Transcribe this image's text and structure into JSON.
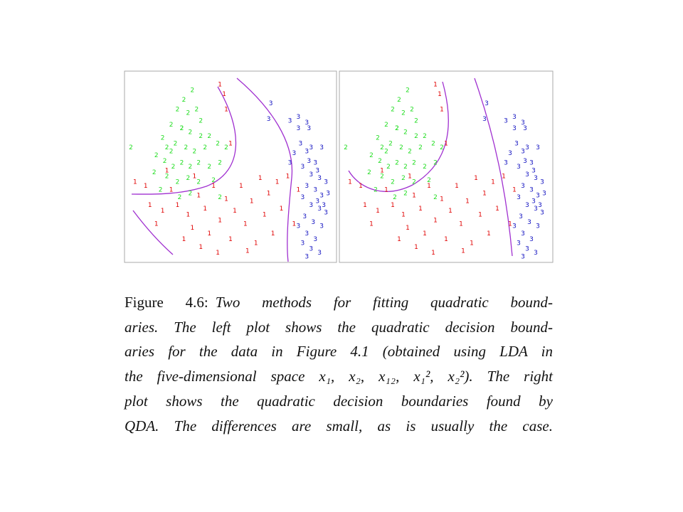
{
  "figure": {
    "classes": [
      {
        "label": "1",
        "color": "#e00000",
        "points": [
          [
            0.45,
            0.93
          ],
          [
            0.47,
            0.88
          ],
          [
            0.48,
            0.8
          ],
          [
            0.5,
            0.62
          ],
          [
            0.1,
            0.4
          ],
          [
            0.12,
            0.3
          ],
          [
            0.18,
            0.27
          ],
          [
            0.22,
            0.38
          ],
          [
            0.25,
            0.3
          ],
          [
            0.3,
            0.25
          ],
          [
            0.32,
            0.18
          ],
          [
            0.35,
            0.35
          ],
          [
            0.38,
            0.28
          ],
          [
            0.4,
            0.15
          ],
          [
            0.42,
            0.4
          ],
          [
            0.45,
            0.22
          ],
          [
            0.48,
            0.33
          ],
          [
            0.5,
            0.12
          ],
          [
            0.52,
            0.27
          ],
          [
            0.55,
            0.4
          ],
          [
            0.57,
            0.2
          ],
          [
            0.6,
            0.32
          ],
          [
            0.62,
            0.1
          ],
          [
            0.64,
            0.44
          ],
          [
            0.66,
            0.25
          ],
          [
            0.68,
            0.36
          ],
          [
            0.7,
            0.15
          ],
          [
            0.72,
            0.42
          ],
          [
            0.74,
            0.28
          ],
          [
            0.77,
            0.45
          ],
          [
            0.8,
            0.2
          ],
          [
            0.82,
            0.38
          ],
          [
            0.28,
            0.12
          ],
          [
            0.36,
            0.08
          ],
          [
            0.44,
            0.05
          ],
          [
            0.58,
            0.06
          ],
          [
            0.2,
            0.48
          ],
          [
            0.33,
            0.45
          ],
          [
            0.05,
            0.42
          ],
          [
            0.15,
            0.2
          ]
        ]
      },
      {
        "label": "2",
        "color": "#22dd22",
        "points": [
          [
            0.32,
            0.9
          ],
          [
            0.28,
            0.85
          ],
          [
            0.25,
            0.8
          ],
          [
            0.3,
            0.78
          ],
          [
            0.34,
            0.8
          ],
          [
            0.22,
            0.72
          ],
          [
            0.27,
            0.7
          ],
          [
            0.31,
            0.68
          ],
          [
            0.36,
            0.74
          ],
          [
            0.4,
            0.66
          ],
          [
            0.18,
            0.65
          ],
          [
            0.2,
            0.6
          ],
          [
            0.24,
            0.62
          ],
          [
            0.29,
            0.6
          ],
          [
            0.33,
            0.58
          ],
          [
            0.38,
            0.6
          ],
          [
            0.44,
            0.62
          ],
          [
            0.48,
            0.6
          ],
          [
            0.03,
            0.6
          ],
          [
            0.15,
            0.56
          ],
          [
            0.19,
            0.53
          ],
          [
            0.23,
            0.5
          ],
          [
            0.27,
            0.52
          ],
          [
            0.31,
            0.5
          ],
          [
            0.35,
            0.52
          ],
          [
            0.4,
            0.5
          ],
          [
            0.45,
            0.52
          ],
          [
            0.2,
            0.45
          ],
          [
            0.25,
            0.42
          ],
          [
            0.3,
            0.44
          ],
          [
            0.35,
            0.42
          ],
          [
            0.42,
            0.43
          ],
          [
            0.14,
            0.47
          ],
          [
            0.17,
            0.38
          ],
          [
            0.26,
            0.34
          ],
          [
            0.31,
            0.36
          ],
          [
            0.45,
            0.34
          ],
          [
            0.27,
            0.7
          ],
          [
            0.22,
            0.58
          ],
          [
            0.36,
            0.66
          ]
        ]
      },
      {
        "label": "3",
        "color": "#1010c0",
        "points": [
          [
            0.69,
            0.83
          ],
          [
            0.68,
            0.75
          ],
          [
            0.78,
            0.74
          ],
          [
            0.82,
            0.76
          ],
          [
            0.86,
            0.73
          ],
          [
            0.82,
            0.7
          ],
          [
            0.87,
            0.7
          ],
          [
            0.83,
            0.62
          ],
          [
            0.86,
            0.58
          ],
          [
            0.88,
            0.6
          ],
          [
            0.93,
            0.6
          ],
          [
            0.8,
            0.57
          ],
          [
            0.78,
            0.52
          ],
          [
            0.84,
            0.5
          ],
          [
            0.9,
            0.52
          ],
          [
            0.88,
            0.46
          ],
          [
            0.92,
            0.44
          ],
          [
            0.95,
            0.42
          ],
          [
            0.86,
            0.4
          ],
          [
            0.9,
            0.38
          ],
          [
            0.93,
            0.35
          ],
          [
            0.84,
            0.34
          ],
          [
            0.88,
            0.3
          ],
          [
            0.92,
            0.28
          ],
          [
            0.95,
            0.26
          ],
          [
            0.85,
            0.24
          ],
          [
            0.89,
            0.21
          ],
          [
            0.93,
            0.19
          ],
          [
            0.82,
            0.19
          ],
          [
            0.86,
            0.15
          ],
          [
            0.9,
            0.12
          ],
          [
            0.84,
            0.1
          ],
          [
            0.88,
            0.07
          ],
          [
            0.92,
            0.05
          ],
          [
            0.86,
            0.03
          ],
          [
            0.91,
            0.32
          ],
          [
            0.96,
            0.36
          ],
          [
            0.87,
            0.53
          ],
          [
            0.91,
            0.48
          ],
          [
            0.94,
            0.3
          ]
        ]
      }
    ],
    "caption": {
      "label": "Figure 4.6:",
      "lines": [
        "Two methods for fitting quadratic bound-",
        "aries. The left plot shows the quadratic decision bound-",
        "aries for the data in Figure 4.1 (obtained using LDA in",
        "the five-dimensional space x₁, x₂, x₁₂, x₁², x₂²). The right",
        "plot shows the quadratic decision boundaries found by",
        "QDA. The differences are small, as is usually the case."
      ]
    }
  }
}
